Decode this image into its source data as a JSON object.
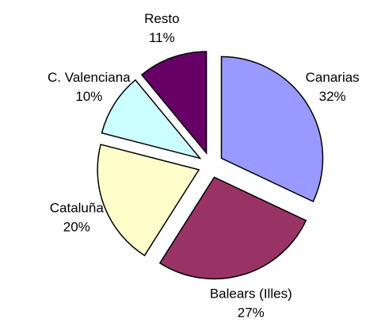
{
  "chart_data": {
    "type": "pie",
    "categories": [
      "Canarias",
      "Balears (Illes)",
      "Cataluña",
      "C. Valenciana",
      "Resto"
    ],
    "values": [
      32,
      27,
      20,
      10,
      11
    ],
    "value_labels": [
      "32%",
      "27%",
      "20%",
      "10%",
      "11%"
    ],
    "colors": [
      "#9999ff",
      "#993366",
      "#ffffcc",
      "#ccffff",
      "#660066"
    ],
    "exploded": true
  }
}
